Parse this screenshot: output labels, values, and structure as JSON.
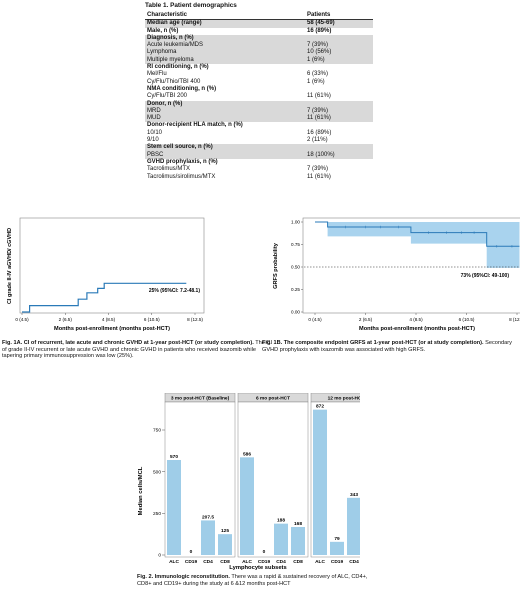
{
  "table1": {
    "title": "Table 1. Patient demographics",
    "header": [
      "Characteristic",
      "Patients"
    ],
    "rows": [
      {
        "label": "Median age (range)",
        "value": "58 (45-69)",
        "bold": true,
        "shade": true
      },
      {
        "label": "Male, n (%)",
        "value": "16 (89%)",
        "bold": true,
        "shade": false
      },
      {
        "label": "Diagnosis, n (%)",
        "value": "",
        "bold": true,
        "shade": true
      },
      {
        "label": "Acute leukemia/MDS",
        "value": "7 (39%)",
        "bold": false,
        "shade": true
      },
      {
        "label": "Lymphoma",
        "value": "10 (56%)",
        "bold": false,
        "shade": true
      },
      {
        "label": "Multiple myeloma",
        "value": "1 (6%)",
        "bold": false,
        "shade": true
      },
      {
        "label": "RI conditioning, n (%)",
        "value": "",
        "bold": true,
        "shade": false
      },
      {
        "label": "Mel/Flu",
        "value": "6 (33%)",
        "bold": false,
        "shade": false
      },
      {
        "label": "Cy/Flu/Thio/TBI 400",
        "value": "1 (6%)",
        "bold": false,
        "shade": false
      },
      {
        "label": "NMA conditioning, n (%)",
        "value": "",
        "bold": true,
        "shade": false
      },
      {
        "label": "Cy/Flu/TBI 200",
        "value": "11 (61%)",
        "bold": false,
        "shade": false
      },
      {
        "label": "Donor, n (%)",
        "value": "",
        "bold": true,
        "shade": true
      },
      {
        "label": "MRD",
        "value": "7 (39%)",
        "bold": false,
        "shade": true
      },
      {
        "label": "MUD",
        "value": "11 (61%)",
        "bold": false,
        "shade": true
      },
      {
        "label": "Donor-recipient HLA match, n (%)",
        "value": "",
        "bold": true,
        "shade": false
      },
      {
        "label": "10/10",
        "value": "16 (89%)",
        "bold": false,
        "shade": false
      },
      {
        "label": "9/10",
        "value": "2 (11%)",
        "bold": false,
        "shade": false
      },
      {
        "label": "Stem cell source, n (%)",
        "value": "",
        "bold": true,
        "shade": true
      },
      {
        "label": "PBSC",
        "value": "18 (100%)",
        "bold": false,
        "shade": true
      },
      {
        "label": "GVHD prophylaxis, n (%)",
        "value": "",
        "bold": true,
        "shade": false
      },
      {
        "label": "Tacrolimus/MTX",
        "value": "7 (39%)",
        "bold": false,
        "shade": false
      },
      {
        "label": "Tacrolimus/sirolimus/MTX",
        "value": "11 (61%)",
        "bold": false,
        "shade": false
      }
    ]
  },
  "fig1a": {
    "caption_bold": "Fig. 1A. CI of recurrent, late acute and chronic GVHD at 1-year post-HCT (or study completion).",
    "caption_rest": " The CI of grade II-IV recurrent or late acute GVHD and chronic GVHD in patients who received ixazomib while tapering primary immunosuppression was low (25%).",
    "annotation": "25% (95%CI: 7.2-48.1)"
  },
  "fig1b": {
    "caption_bold": "Fig. 1B. The composite endpoint GRFS at 1-year post-HCT (or at study completion).",
    "caption_rest": " Secondary GVHD prophylaxis with ixazomib was associated with high GRFS.",
    "annotation": "73% (95%CI: 49-100)"
  },
  "fig2": {
    "caption_bold": "Fig. 2. Immunologic reconstitution.",
    "caption_rest": " There was a rapid & sustained recovery of ALC, CD4+, CD8+ and CD19+ during the study at 6 &12 months post-HCT"
  },
  "chart_data": [
    {
      "type": "line",
      "step": true,
      "ylabel": "CI grade II-IV aGVHD/ cGVHD",
      "xlabel": "Months post-enrollment (months post-HCT)",
      "x_ticks": [
        "0 (4.5)",
        "2 (6.5)",
        "4 (8.5)",
        "6 (10.5)",
        "8 (12.5)"
      ],
      "xlim": [
        0,
        8
      ],
      "ylim": [
        0,
        0.8
      ],
      "series": [
        {
          "x": [
            0,
            0.35,
            0.35,
            2.6,
            2.6,
            3.0,
            3.0,
            3.5,
            3.5,
            3.8,
            3.8,
            7.6
          ],
          "y": [
            0,
            0,
            0.056,
            0.056,
            0.111,
            0.111,
            0.167,
            0.167,
            0.205,
            0.205,
            0.25,
            0.25
          ]
        }
      ],
      "color": "#2a7ab8",
      "annotation": "25% (95%CI: 7.2-48.1)"
    },
    {
      "type": "line",
      "step": true,
      "ylabel": "GRFS probability",
      "xlabel": "Months post-enrollment (months post-HCT)",
      "x_ticks": [
        "0 (4.5)",
        "2 (6.5)",
        "4 (8.5)",
        "6 (10.5)",
        "8 (12.5)"
      ],
      "y_ticks": [
        "0.00",
        "0.25",
        "0.50",
        "0.75",
        "1.00"
      ],
      "xlim": [
        0,
        8
      ],
      "ylim": [
        0,
        1
      ],
      "reference_line": 0.5,
      "series": [
        {
          "x": [
            0,
            0.5,
            0.5,
            3.8,
            3.8,
            6.8,
            6.8,
            8.1
          ],
          "y": [
            1.0,
            1.0,
            0.944,
            0.944,
            0.882,
            0.882,
            0.73,
            0.73
          ],
          "ci_low": [
            1.0,
            1.0,
            0.84,
            0.84,
            0.76,
            0.76,
            0.49,
            0.49
          ],
          "ci_high": [
            1.0,
            1.0,
            1.0,
            1.0,
            1.0,
            1.0,
            1.0,
            1.0
          ]
        }
      ],
      "color": "#2a7ab8",
      "band_color": "#a9d3ee",
      "annotation": "73% (95%CI: 49-100)"
    },
    {
      "type": "bar",
      "ylabel": "Median cells/MCL",
      "xlabel": "Lymphocyte subsets",
      "categories": [
        "ALC",
        "CD19",
        "CD4",
        "CD8"
      ],
      "ylim": [
        0,
        900
      ],
      "y_ticks": [
        0,
        250,
        500,
        750
      ],
      "panels": [
        {
          "title": "3 mo post-HCT (Baseline)",
          "values": [
            570,
            0,
            207.5,
            125
          ],
          "labels": [
            "570",
            "0",
            "207.5",
            "125"
          ]
        },
        {
          "title": "6 mo post-HCT",
          "values": [
            586,
            0,
            188,
            168
          ],
          "labels": [
            "586",
            "0",
            "188",
            "168"
          ]
        },
        {
          "title": "12 mo post-HCT",
          "values": [
            872,
            79,
            343,
            218
          ],
          "labels": [
            "872",
            "79",
            "343",
            "218"
          ]
        }
      ],
      "color": "#9fcde8"
    }
  ]
}
